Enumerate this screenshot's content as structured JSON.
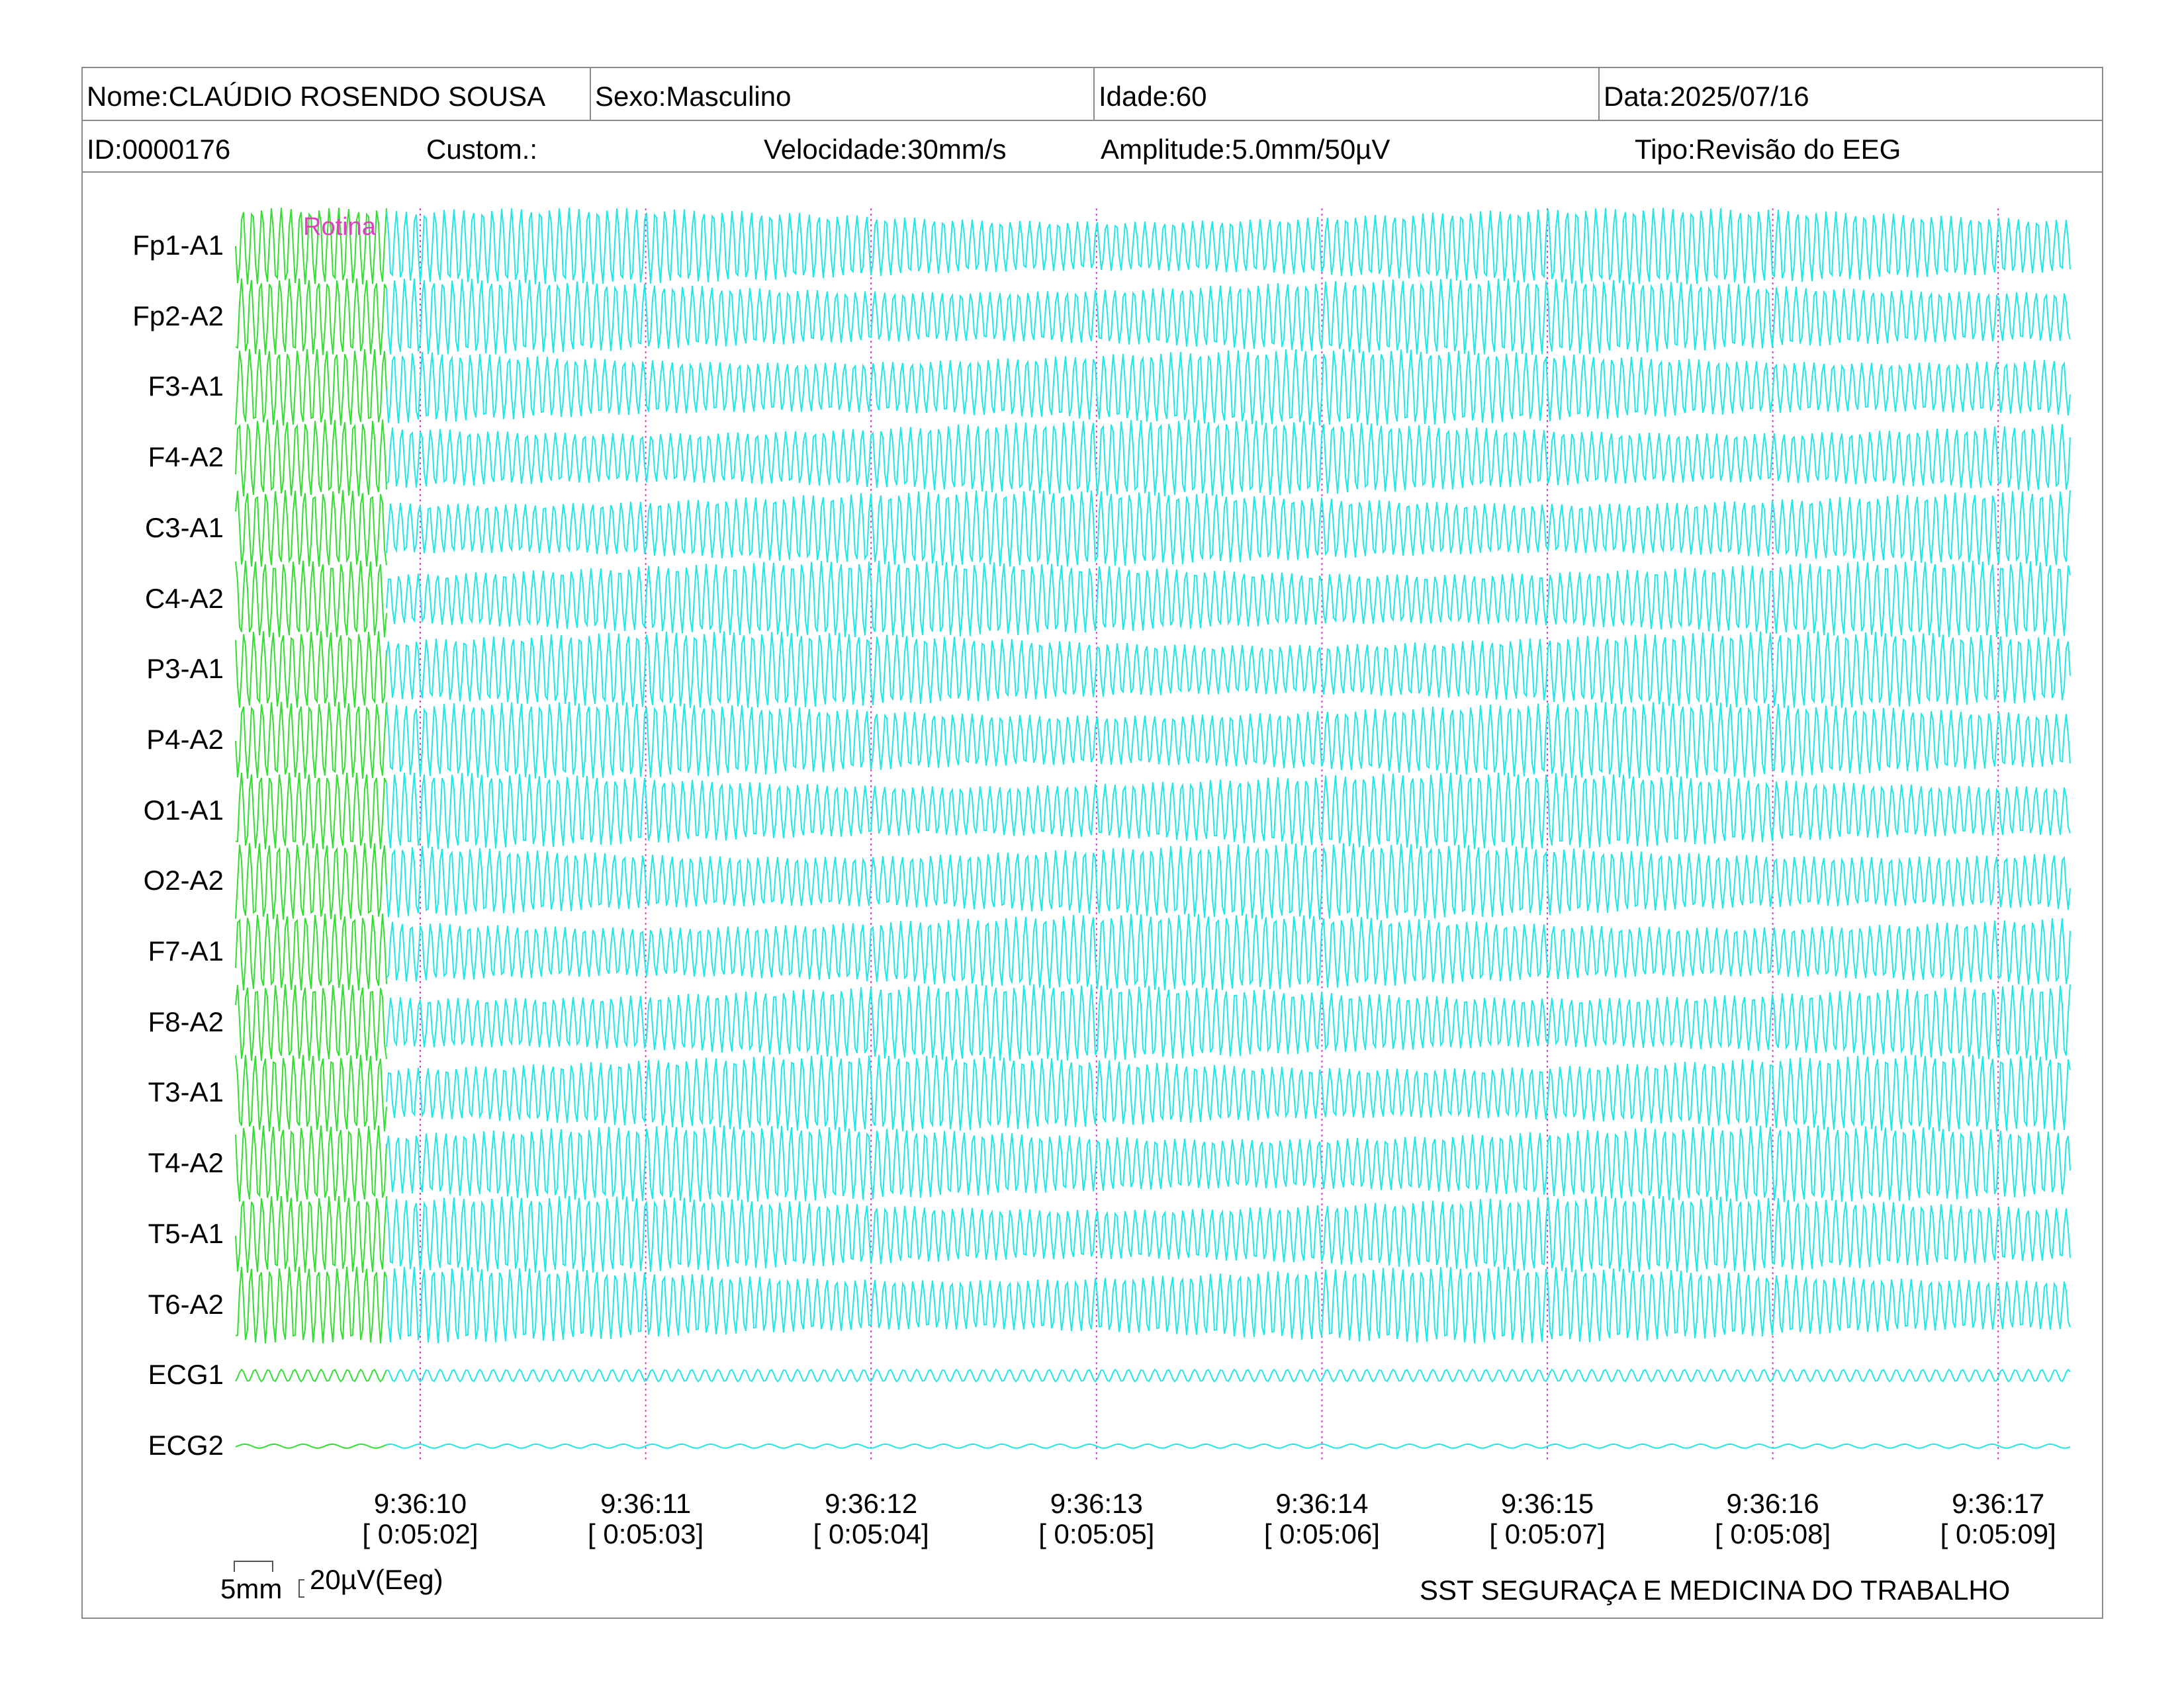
{
  "header": {
    "nome": "Nome:CLAÚDIO ROSENDO SOUSA",
    "sexo": "Sexo:Masculino",
    "idade": "Idade:60",
    "data": "Data:2025/07/16",
    "id": "ID:0000176",
    "custom": "Custom.:",
    "velocidade": "Velocidade:30mm/s",
    "amplitude": "Amplitude:5.0mm/50µV",
    "tipo": "Tipo:Revisão do EEG"
  },
  "annotation": "Rotina",
  "channels": [
    "Fp1-A1",
    "Fp2-A2",
    "F3-A1",
    "F4-A2",
    "C3-A1",
    "C4-A2",
    "P3-A1",
    "P4-A2",
    "O1-A1",
    "O2-A2",
    "F7-A1",
    "F8-A2",
    "T3-A1",
    "T4-A2",
    "T5-A1",
    "T6-A2",
    "ECG1",
    "ECG2"
  ],
  "time_marks": [
    {
      "time": "9:36:10",
      "elapsed": "[ 0:05:02]"
    },
    {
      "time": "9:36:11",
      "elapsed": "[ 0:05:03]"
    },
    {
      "time": "9:36:12",
      "elapsed": "[ 0:05:04]"
    },
    {
      "time": "9:36:13",
      "elapsed": "[ 0:05:05]"
    },
    {
      "time": "9:36:14",
      "elapsed": "[ 0:05:06]"
    },
    {
      "time": "9:36:15",
      "elapsed": "[ 0:05:07]"
    },
    {
      "time": "9:36:16",
      "elapsed": "[ 0:05:08]"
    },
    {
      "time": "9:36:17",
      "elapsed": "[ 0:05:09]"
    }
  ],
  "scale": {
    "length": "5mm",
    "amplitude": "20µV(Eeg)"
  },
  "footer": "SST SEGURAÇA E MEDICINA DO TRABALHO",
  "colors": {
    "highlight_trace": "#33dd33",
    "trace": "#22e6e6",
    "marker": "#e040c0",
    "border": "#8a8a8a"
  }
}
